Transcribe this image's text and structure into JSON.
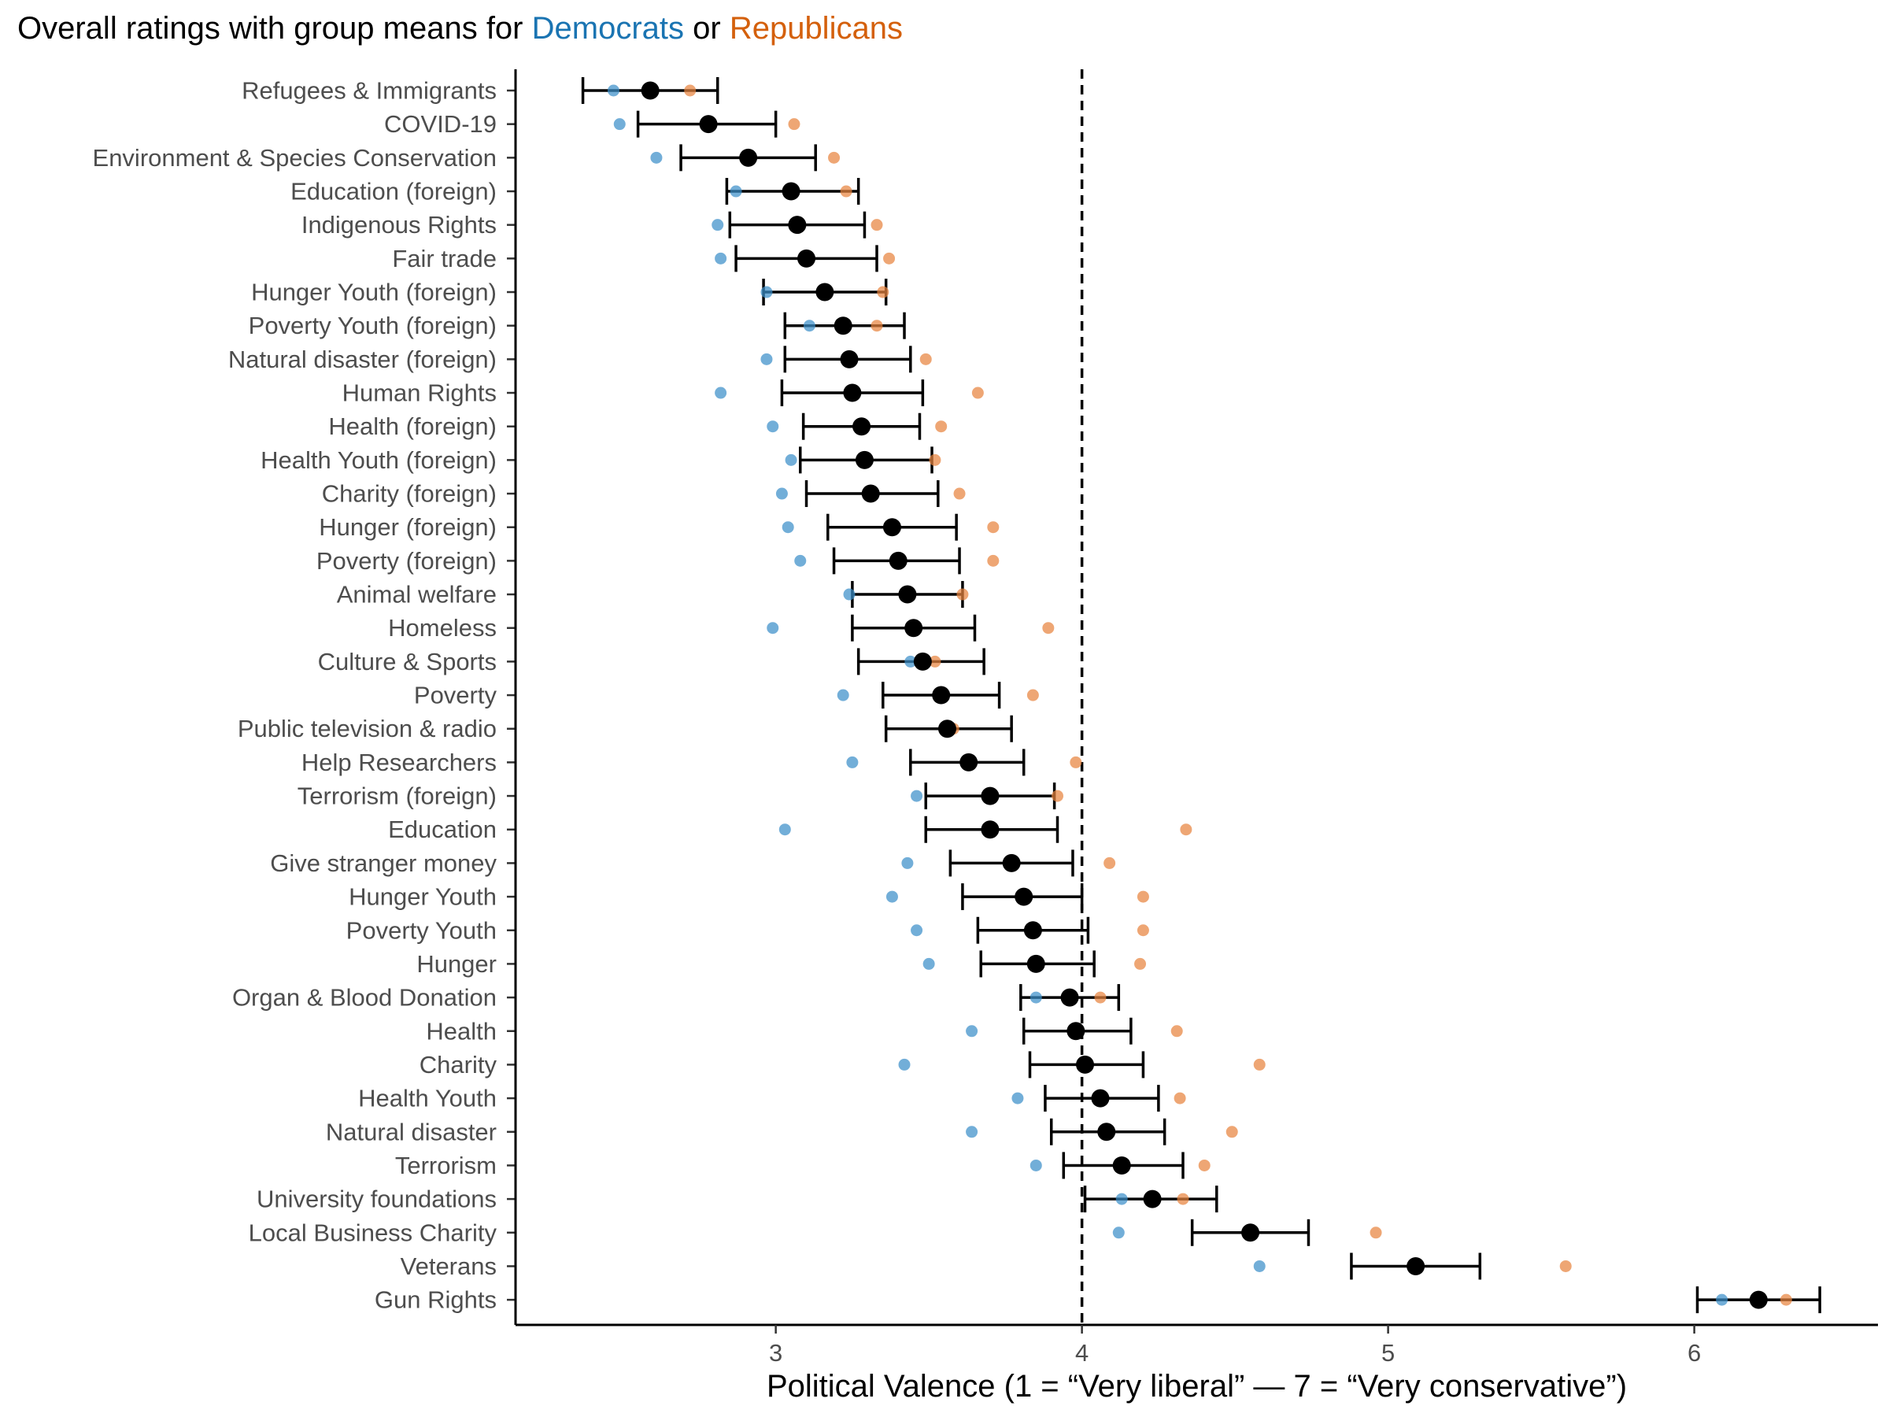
{
  "title": {
    "prefix": "Overall ratings with group means for ",
    "dem_label": "Democrats",
    "connector": " or ",
    "rep_label": "Republicans"
  },
  "colors": {
    "democrats": "#3c8fc9",
    "republicans": "#e8843e",
    "dem_title": "#1a74b2",
    "rep_title": "#d4600c",
    "overall": "#000000"
  },
  "chart_data": {
    "type": "scatter",
    "xlabel": "Political Valence (1 = “Very liberal” — 7 = “Very conservative”)",
    "ylabel": "",
    "xlim": [
      2.15,
      6.6
    ],
    "x_ticks": [
      3,
      4,
      5,
      6
    ],
    "reference_line": 4,
    "grid": false,
    "categories": [
      "Refugees & Immigrants",
      "COVID-19",
      "Environment & Species Conservation",
      "Education (foreign)",
      "Indigenous Rights",
      "Fair trade",
      "Hunger Youth (foreign)",
      "Poverty Youth (foreign)",
      "Natural disaster (foreign)",
      "Human Rights",
      "Health (foreign)",
      "Health Youth (foreign)",
      "Charity (foreign)",
      "Hunger (foreign)",
      "Poverty (foreign)",
      "Animal welfare",
      "Homeless",
      "Culture & Sports",
      "Poverty",
      "Public television & radio",
      "Help Researchers",
      "Terrorism (foreign)",
      "Education",
      "Give stranger money",
      "Hunger Youth",
      "Poverty Youth",
      "Hunger",
      "Organ & Blood Donation",
      "Health",
      "Charity",
      "Health Youth",
      "Natural disaster",
      "Terrorism",
      "University foundations",
      "Local Business Charity",
      "Veterans",
      "Gun Rights"
    ],
    "series": [
      {
        "name": "Democrats",
        "values": [
          2.47,
          2.49,
          2.61,
          2.87,
          2.81,
          2.82,
          2.97,
          3.11,
          2.97,
          2.82,
          2.99,
          3.05,
          3.02,
          3.04,
          3.08,
          3.24,
          2.99,
          3.44,
          3.22,
          3.56,
          3.25,
          3.46,
          3.03,
          3.43,
          3.38,
          3.46,
          3.5,
          3.85,
          3.64,
          3.42,
          3.79,
          3.64,
          3.85,
          4.13,
          4.12,
          4.58,
          6.09
        ]
      },
      {
        "name": "Republicans",
        "values": [
          2.72,
          3.06,
          3.19,
          3.23,
          3.33,
          3.37,
          3.35,
          3.33,
          3.49,
          3.66,
          3.54,
          3.52,
          3.6,
          3.71,
          3.71,
          3.61,
          3.89,
          3.52,
          3.84,
          3.58,
          3.98,
          3.92,
          4.34,
          4.09,
          4.2,
          4.2,
          4.19,
          4.06,
          4.31,
          4.58,
          4.32,
          4.49,
          4.4,
          4.33,
          4.96,
          5.58,
          6.3
        ]
      },
      {
        "name": "Overall",
        "values": [
          2.59,
          2.78,
          2.91,
          3.05,
          3.07,
          3.1,
          3.16,
          3.22,
          3.24,
          3.25,
          3.28,
          3.29,
          3.31,
          3.38,
          3.4,
          3.43,
          3.45,
          3.48,
          3.54,
          3.56,
          3.63,
          3.7,
          3.7,
          3.77,
          3.81,
          3.84,
          3.85,
          3.96,
          3.98,
          4.01,
          4.06,
          4.08,
          4.13,
          4.23,
          4.55,
          5.09,
          6.21
        ],
        "ci_low": [
          2.37,
          2.55,
          2.69,
          2.84,
          2.85,
          2.87,
          2.96,
          3.03,
          3.03,
          3.02,
          3.09,
          3.08,
          3.1,
          3.17,
          3.19,
          3.25,
          3.25,
          3.27,
          3.35,
          3.36,
          3.44,
          3.49,
          3.49,
          3.57,
          3.61,
          3.66,
          3.67,
          3.8,
          3.81,
          3.83,
          3.88,
          3.9,
          3.94,
          4.01,
          4.36,
          4.88,
          6.01
        ],
        "ci_high": [
          2.81,
          3.0,
          3.13,
          3.27,
          3.29,
          3.33,
          3.36,
          3.42,
          3.44,
          3.48,
          3.47,
          3.51,
          3.53,
          3.59,
          3.6,
          3.61,
          3.65,
          3.68,
          3.73,
          3.77,
          3.81,
          3.91,
          3.92,
          3.97,
          4.0,
          4.02,
          4.04,
          4.12,
          4.16,
          4.2,
          4.25,
          4.27,
          4.33,
          4.44,
          4.74,
          5.3,
          6.41
        ]
      }
    ]
  }
}
